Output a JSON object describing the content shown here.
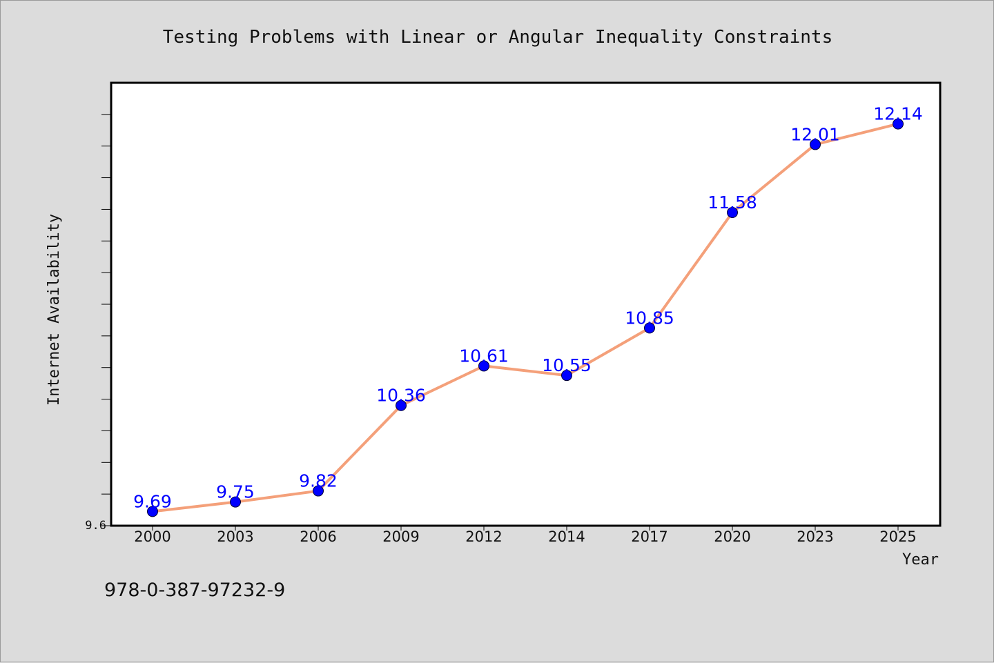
{
  "chart_data": {
    "type": "line",
    "title": "Testing Problems with Linear or Angular Inequality Constraints",
    "xlabel": "Year",
    "ylabel": "Internet Availability",
    "categories": [
      "2000",
      "2003",
      "2006",
      "2009",
      "2012",
      "2014",
      "2017",
      "2020",
      "2023",
      "2025"
    ],
    "values": [
      9.69,
      9.75,
      9.82,
      10.36,
      10.61,
      10.55,
      10.85,
      11.58,
      12.01,
      12.14
    ],
    "data_labels": [
      "9.69",
      "9.75",
      "9.82",
      "10.36",
      "10.61",
      "10.55",
      "10.85",
      "11.58",
      "12.01",
      "12.14"
    ],
    "ylim": [
      9.6,
      12.4
    ],
    "y_tick_labels": [
      "9.6"
    ],
    "grid": false,
    "legend": "none",
    "line_color": "#f4a07a",
    "marker_color": "#0000ff",
    "label_color": "#0000ff"
  },
  "footer": {
    "isbn": "978-0-387-97232-9"
  }
}
